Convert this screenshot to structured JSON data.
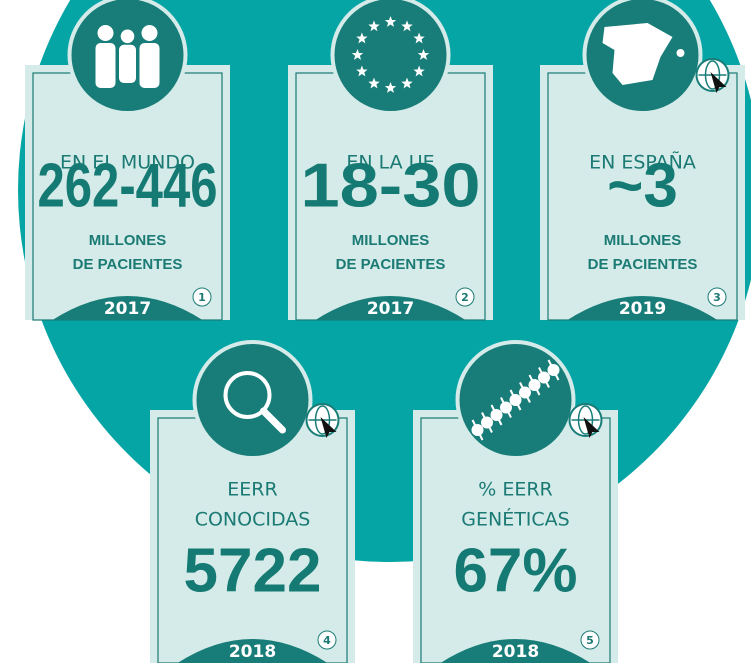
{
  "cards": [
    {
      "label_lines": [
        "EN EL MUNDO"
      ],
      "value": "262-446",
      "unit_lines": [
        "MILLONES",
        "DE PACIENTES"
      ],
      "year": "2017",
      "ref": "1"
    },
    {
      "label_lines": [
        "EN LA UE"
      ],
      "value": "18-30",
      "unit_lines": [
        "MILLONES",
        "DE PACIENTES"
      ],
      "year": "2017",
      "ref": "2"
    },
    {
      "label_lines": [
        "EN ESPAÑA"
      ],
      "value": "~3",
      "unit_lines": [
        "MILLONES",
        "DE PACIENTES"
      ],
      "year": "2019",
      "ref": "3"
    },
    {
      "label_lines": [
        "EERR",
        "CONOCIDAS"
      ],
      "value": "5722",
      "year": "2018",
      "ref": "4"
    },
    {
      "label_lines": [
        "% EERR",
        "GENÉTICAS"
      ],
      "value": "67%",
      "year": "2018",
      "ref": "5"
    }
  ]
}
